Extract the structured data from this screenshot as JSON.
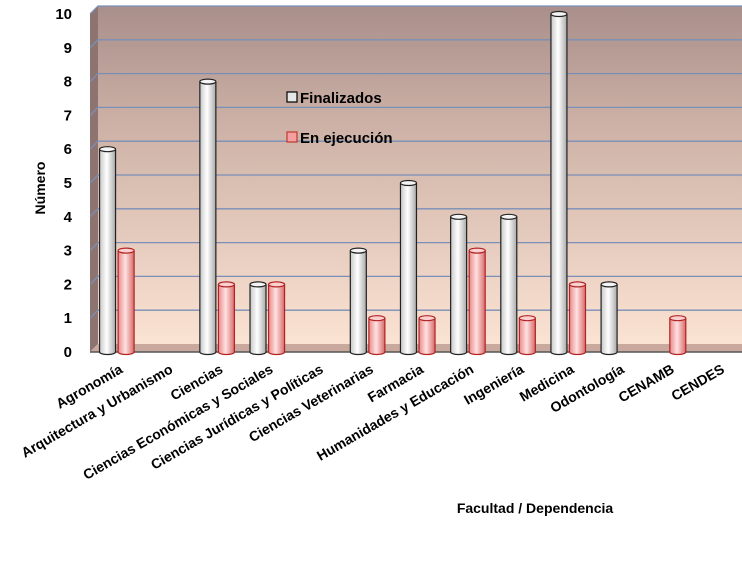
{
  "chart_data": {
    "type": "bar",
    "title": "",
    "xlabel": "Facultad / Dependencia",
    "ylabel": "Número",
    "ylim": [
      0,
      10
    ],
    "yticks": [
      0,
      1,
      2,
      3,
      4,
      5,
      6,
      7,
      8,
      9,
      10
    ],
    "grid": true,
    "legend_position": "top-center",
    "categories": [
      "Agronomía",
      "Arquitectura y Urbanismo",
      "Ciencias",
      "Ciencias Económicas y Sociales",
      "Ciencias Jurídicas y Políticas",
      "Ciencias Veterinarias",
      "Farmacia",
      "Humanidades y Educación",
      "Ingeniería",
      "Medicina",
      "Odontología",
      "CENAMB",
      "CENDES"
    ],
    "series": [
      {
        "name": "Finalizados",
        "color": "#e6e6e6",
        "values": [
          6,
          0,
          8,
          2,
          0,
          3,
          5,
          4,
          4,
          10,
          2,
          0,
          0
        ]
      },
      {
        "name": "En ejecución",
        "color": "#f4a0a0",
        "values": [
          3,
          0,
          2,
          2,
          0,
          1,
          1,
          3,
          1,
          2,
          0,
          1,
          0
        ]
      }
    ]
  }
}
